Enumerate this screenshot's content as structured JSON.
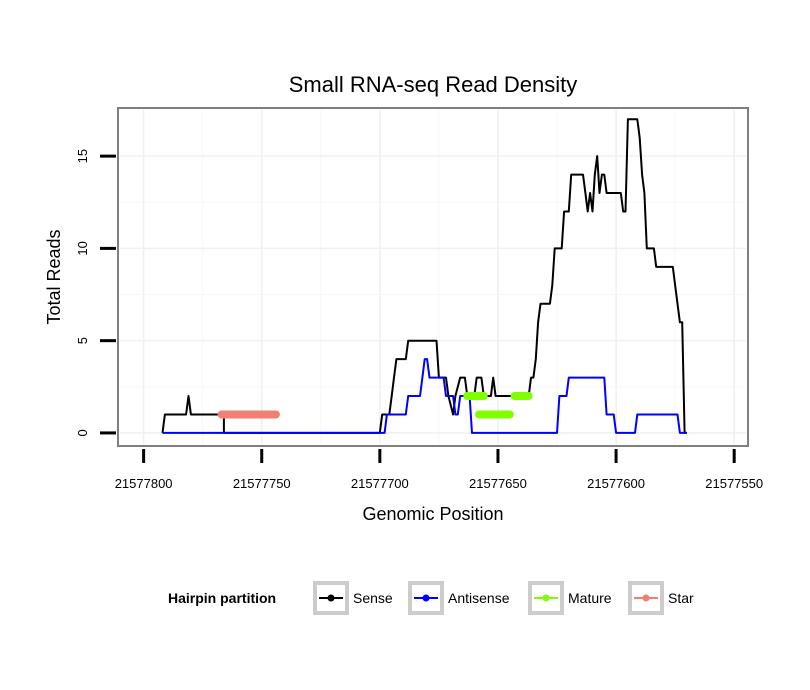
{
  "chart_data": {
    "type": "line",
    "title": "Small RNA-seq Read Density",
    "xlabel": "Genomic Position",
    "ylabel": "Total Reads",
    "xlim": [
      21577810,
      21577545
    ],
    "x_reversed": true,
    "ylim": [
      -0.6,
      17.5
    ],
    "x_ticks": [
      21577800,
      21577750,
      21577700,
      21577650,
      21577600,
      21577550
    ],
    "y_ticks": [
      0,
      5,
      10,
      15
    ],
    "grid": true,
    "legend": {
      "title": "Hairpin partition",
      "position": "bottom"
    },
    "series": [
      {
        "name": "Sense",
        "color": "#000000",
        "points": [
          [
            21577792,
            0
          ],
          [
            21577791,
            1
          ],
          [
            21577783,
            1
          ],
          [
            21577782,
            1
          ],
          [
            21577781,
            2
          ],
          [
            21577780,
            1
          ],
          [
            21577766,
            1
          ],
          [
            21577766,
            0
          ],
          [
            21577700,
            0
          ],
          [
            21577699,
            1
          ],
          [
            21577696,
            1
          ],
          [
            21577695,
            2
          ],
          [
            21577694,
            3
          ],
          [
            21577693,
            4
          ],
          [
            21577689,
            4
          ],
          [
            21577688,
            5
          ],
          [
            21577676,
            5
          ],
          [
            21577675,
            3
          ],
          [
            21577672,
            3
          ],
          [
            21577671,
            2
          ],
          [
            21577669,
            1
          ],
          [
            21577668,
            2
          ],
          [
            21577666,
            3
          ],
          [
            21577664,
            3
          ],
          [
            21577663,
            2
          ],
          [
            21577660,
            2
          ],
          [
            21577659,
            3
          ],
          [
            21577657,
            3
          ],
          [
            21577656,
            2
          ],
          [
            21577653,
            2
          ],
          [
            21577652,
            3
          ],
          [
            21577651,
            2
          ],
          [
            21577640,
            2
          ],
          [
            21577637,
            2
          ],
          [
            21577636,
            3
          ],
          [
            21577635,
            3
          ],
          [
            21577634,
            4
          ],
          [
            21577633,
            6
          ],
          [
            21577632,
            7
          ],
          [
            21577628,
            7
          ],
          [
            21577627,
            8
          ],
          [
            21577626,
            10
          ],
          [
            21577623,
            10
          ],
          [
            21577622,
            12
          ],
          [
            21577620,
            12
          ],
          [
            21577619,
            14
          ],
          [
            21577614,
            14
          ],
          [
            21577613,
            13
          ],
          [
            21577612,
            12
          ],
          [
            21577611,
            13
          ],
          [
            21577610,
            12
          ],
          [
            21577609,
            14
          ],
          [
            21577608,
            15
          ],
          [
            21577607,
            13
          ],
          [
            21577606,
            14
          ],
          [
            21577605,
            14
          ],
          [
            21577604,
            13
          ],
          [
            21577598,
            13
          ],
          [
            21577597,
            12
          ],
          [
            21577596,
            12
          ],
          [
            21577595,
            17
          ],
          [
            21577591,
            17
          ],
          [
            21577590,
            16
          ],
          [
            21577589,
            14
          ],
          [
            21577588,
            13
          ],
          [
            21577587,
            10
          ],
          [
            21577584,
            10
          ],
          [
            21577583,
            9
          ],
          [
            21577576,
            9
          ],
          [
            21577574,
            7
          ],
          [
            21577573,
            6
          ],
          [
            21577572,
            6
          ],
          [
            21577571,
            0
          ],
          [
            21577570,
            0
          ]
        ]
      },
      {
        "name": "Antisense",
        "color": "#0000ff",
        "points": [
          [
            21577792,
            0
          ],
          [
            21577703,
            0
          ],
          [
            21577702,
            0
          ],
          [
            21577698,
            0
          ],
          [
            21577697,
            1
          ],
          [
            21577689,
            1
          ],
          [
            21577688,
            2
          ],
          [
            21577683,
            2
          ],
          [
            21577682,
            3
          ],
          [
            21577681,
            4
          ],
          [
            21577680,
            4
          ],
          [
            21577679,
            3
          ],
          [
            21577673,
            3
          ],
          [
            21577672,
            2
          ],
          [
            21577670,
            2
          ],
          [
            21577669,
            2
          ],
          [
            21577668,
            1
          ],
          [
            21577667,
            1
          ],
          [
            21577666,
            2
          ],
          [
            21577662,
            2
          ],
          [
            21577661,
            0
          ],
          [
            21577625,
            0
          ],
          [
            21577624,
            2
          ],
          [
            21577621,
            2
          ],
          [
            21577620,
            3
          ],
          [
            21577605,
            3
          ],
          [
            21577604,
            1
          ],
          [
            21577601,
            1
          ],
          [
            21577600,
            0
          ],
          [
            21577592,
            0
          ],
          [
            21577591,
            1
          ],
          [
            21577574,
            1
          ],
          [
            21577573,
            0
          ],
          [
            21577570,
            0
          ]
        ]
      },
      {
        "name": "Mature",
        "color": "#7fff00",
        "segments": [
          {
            "y": 2,
            "x": [
              21577663,
              21577656
            ]
          },
          {
            "y": 1,
            "x": [
              21577658,
              21577645
            ]
          },
          {
            "y": 2,
            "x": [
              21577643,
              21577637
            ]
          }
        ]
      },
      {
        "name": "Star",
        "color": "#f08070",
        "segments": [
          {
            "y": 1,
            "x": [
              21577767,
              21577744
            ]
          }
        ]
      }
    ]
  }
}
